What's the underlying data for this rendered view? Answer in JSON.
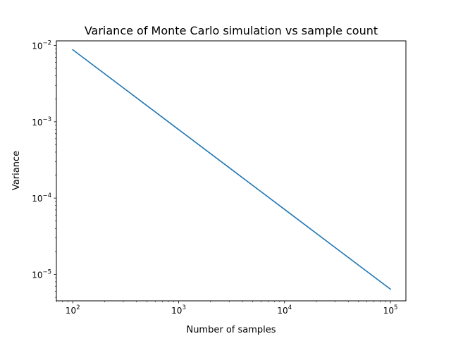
{
  "chart_data": {
    "type": "line",
    "title": "Variance of Monte Carlo simulation vs sample count",
    "xlabel": "Number of samples",
    "ylabel": "Variance",
    "xscale": "log",
    "yscale": "log",
    "xlim": [
      70,
      140000
    ],
    "ylim": [
      4.5e-06,
      0.0115
    ],
    "grid": false,
    "legend": "none",
    "x_ticks": [
      {
        "value": 100,
        "base": "10",
        "exp": "2"
      },
      {
        "value": 1000,
        "base": "10",
        "exp": "3"
      },
      {
        "value": 10000,
        "base": "10",
        "exp": "4"
      },
      {
        "value": 100000,
        "base": "10",
        "exp": "5"
      }
    ],
    "y_ticks": [
      {
        "value": 1e-05,
        "base": "10",
        "exp": "−5"
      },
      {
        "value": 0.0001,
        "base": "10",
        "exp": "−4"
      },
      {
        "value": 0.001,
        "base": "10",
        "exp": "−3"
      },
      {
        "value": 0.01,
        "base": "10",
        "exp": "−2"
      }
    ],
    "series": [
      {
        "color": "#1f77b4",
        "x": [
          100,
          316,
          1000,
          3162,
          10000,
          31623,
          100000
        ],
        "y": [
          0.0088,
          0.00264,
          0.00079,
          0.000237,
          7.11e-05,
          2.13e-05,
          6.4e-06
        ]
      }
    ]
  }
}
